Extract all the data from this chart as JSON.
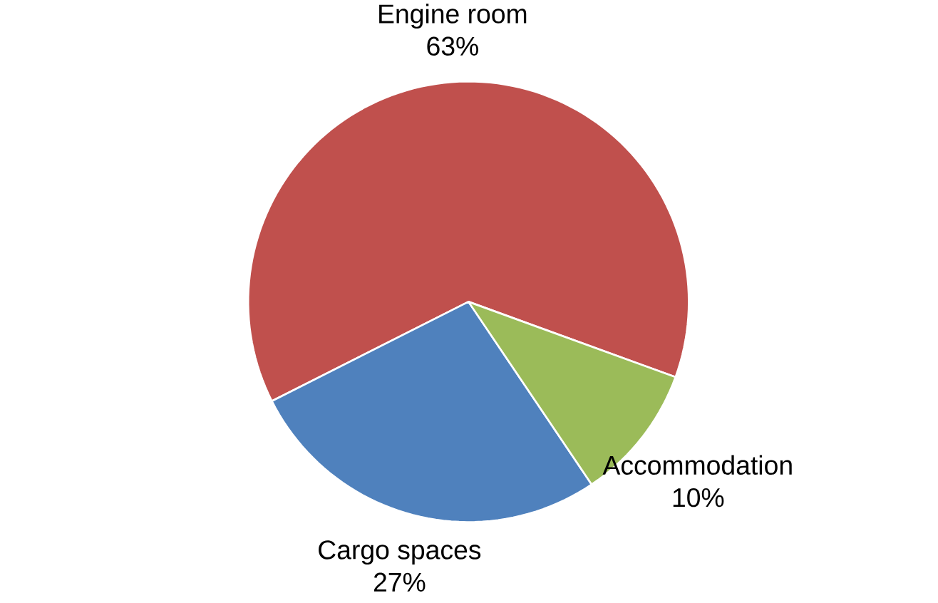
{
  "chart_data": {
    "type": "pie",
    "categories": [
      "Engine room",
      "Cargo spaces",
      "Accommodation"
    ],
    "values": [
      63,
      27,
      10
    ],
    "colors": [
      "#c0504d",
      "#4f81bd",
      "#9bbb59"
    ],
    "value_labels": [
      "63%",
      "27%",
      "10%"
    ]
  }
}
